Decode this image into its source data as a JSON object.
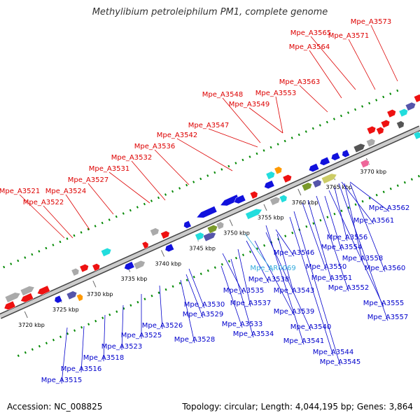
{
  "title": "Methylibium petroleiphilum PM1, complete genome",
  "footer": {
    "accession": "Accession: NC_008825",
    "summary": "Topology: circular; Length: 4,044,195 bp; Genes: 3,864"
  },
  "colors": {
    "backbone": "#888888",
    "top_label": "#dd0000",
    "bottom_label": "#0000cc",
    "rna_label": "#33aadd",
    "tick": "#008800",
    "scale_text": "#000000"
  },
  "scale_labels": [
    "3720 kbp",
    "3725 kbp",
    "3730 kbp",
    "3735 kbp",
    "3740 kbp",
    "3745 kbp",
    "3750 kbp",
    "3755 kbp",
    "3760 kbp",
    "3765 kbp",
    "3770 kbp"
  ],
  "top_labels": [
    "Mpe_A3521",
    "Mpe_A3522",
    "Mpe_A3524",
    "Mpe_A3527",
    "Mpe_A3531",
    "Mpe_A3532",
    "Mpe_A3536",
    "Mpe_A3542",
    "Mpe_A3547",
    "Mpe_A3548",
    "Mpe_A3549",
    "Mpe_A3553",
    "Mpe_A3563",
    "Mpe_A3564",
    "Mpe_A3565",
    "Mpe_A3571",
    "Mpe_A3573"
  ],
  "bottom_labels": [
    "Mpe_A3515",
    "Mpe_A3516",
    "Mpe_A3518",
    "Mpe_A3523",
    "Mpe_A3525",
    "Mpe_A3526",
    "Mpe_A3528",
    "Mpe_A3529",
    "Mpe_A3530",
    "Mpe_A3533",
    "Mpe_A3534",
    "Mpe_A3535",
    "Mpe_A3537",
    "Mpe_A3538",
    "Mpe_A3539",
    "Mpe_A3540",
    "Mpe_A3541",
    "Mpe_A3543",
    "Mpe_A3544",
    "Mpe_A3545",
    "Mpe_A3546",
    "Mpe_A3550",
    "Mpe_A3551",
    "Mpe_A3552",
    "Mpe_A3554",
    "Mpe_A3555",
    "Mpe_A3556",
    "Mpe_A3557",
    "Mpe_A3558",
    "Mpe_A3560",
    "Mpe_A3561",
    "Mpe_A3562"
  ],
  "rna_labels": [
    "Mpe_AR0069"
  ]
}
